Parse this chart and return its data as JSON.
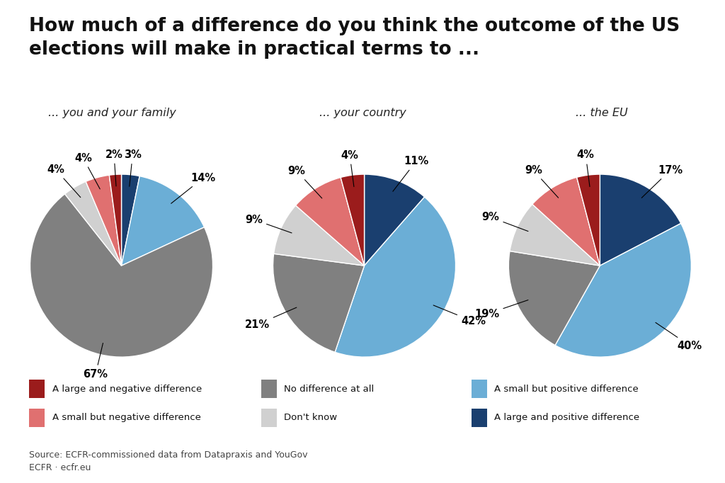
{
  "title": "How much of a difference do you think the outcome of the US\nelections will make in practical terms to ...",
  "subtitle_family": "... you and your family",
  "subtitle_country": "... your country",
  "subtitle_eu": "... the EU",
  "categories": [
    "A large and positive difference",
    "A small but positive difference",
    "No difference at all",
    "Don't know",
    "A small but negative difference",
    "A large and negative difference"
  ],
  "colors": [
    "#1a3f6f",
    "#6baed6",
    "#808080",
    "#d0d0d0",
    "#e07070",
    "#9b1c1c"
  ],
  "family": [
    3,
    14,
    67,
    4,
    4,
    2
  ],
  "country": [
    11,
    42,
    21,
    9,
    9,
    4
  ],
  "eu": [
    17,
    40,
    19,
    9,
    9,
    4
  ],
  "legend_order": [
    5,
    4,
    1,
    3,
    0,
    2
  ],
  "legend_labels": [
    "A large and negative difference",
    "A small but negative difference",
    "No difference at all",
    "Don't know",
    "A small but positive difference",
    "A large and positive difference"
  ],
  "legend_colors": [
    "#9b1c1c",
    "#e07070",
    "#808080",
    "#d0d0d0",
    "#6baed6",
    "#1a3f6f"
  ],
  "source": "Source: ECFR-commissioned data from Datapraxis and YouGov\nECFR · ecfr.eu",
  "background_color": "#ffffff"
}
